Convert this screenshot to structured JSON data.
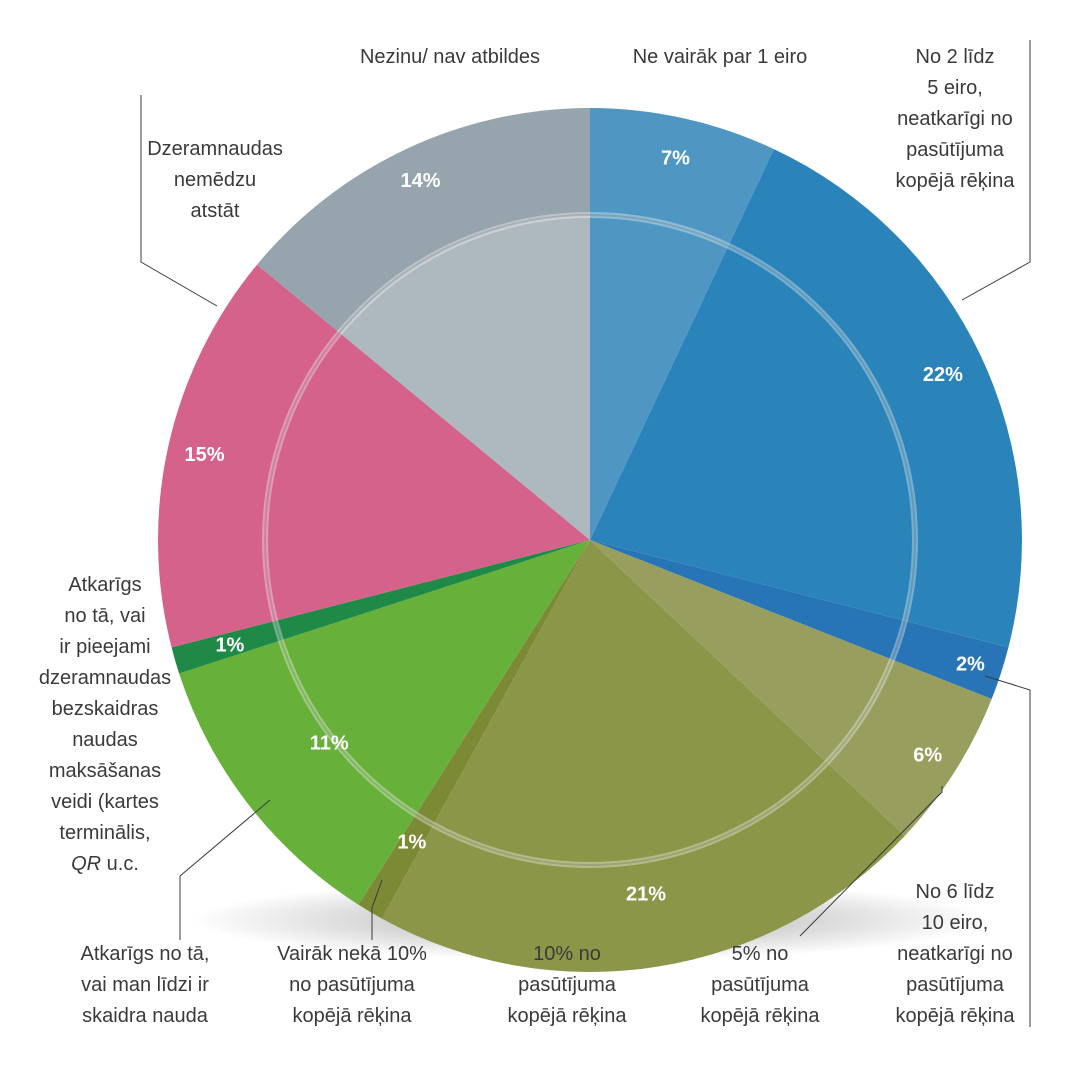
{
  "chart_data": {
    "type": "pie",
    "slices": [
      {
        "label": "Ne vairāk par 1 eiro",
        "value": 7,
        "pct_label": "7%",
        "color": "#4f97c2"
      },
      {
        "label": "No 2 līdz\n5 eiro,\nneatkarīgi no\npasūtījuma\nkopējā rēķina",
        "value": 22,
        "pct_label": "22%",
        "color": "#2a84b9"
      },
      {
        "label": "",
        "value": 2,
        "pct_label": "2%",
        "color": "#2774b6"
      },
      {
        "label": "No 6 līdz\n10 eiro,\nneatkarīgi no\npasūtījuma\nkopējā rēķina",
        "value": 6,
        "pct_label": "6%",
        "color": "#989e5d"
      },
      {
        "label": "5% no\npasūtījuma\nkopējā rēķina",
        "value": 21,
        "pct_label": "21%",
        "color": "#8c9648"
      },
      {
        "label": "10% no\npasūtījuma\nkopējā rēķina",
        "value": 1,
        "pct_label": "1%",
        "color": "#7c8a36"
      },
      {
        "label": "Vairāk nekā 10%\nno pasūtījuma\nkopējā rēķina",
        "value": 11,
        "pct_label": "11%",
        "color": "#67b03a"
      },
      {
        "label": "Atkarīgs no tā,\nvai man līdzi ir\nskaidra nauda",
        "value": 1,
        "pct_label": "1%",
        "color": "#1f8a48"
      },
      {
        "label": "Atkarīgs\nno tā, vai\nir pieejami\ndzeramnaudas\nbezskaidras\nnaudas\nmaksāšanas\nveidi (kartes\nterminālis,\nQR u.c.",
        "value": 15,
        "pct_label": "15%",
        "color": "#d5628b"
      },
      {
        "label": "Dzeramnaudas\nnemēdzu\natstāt",
        "value": 14,
        "pct_label": "14%",
        "color": "#96a4ae"
      },
      {
        "label": "Nezinu/ nav atbildes",
        "value": 0,
        "pct_label": "",
        "color": "#96a4ae"
      }
    ]
  }
}
